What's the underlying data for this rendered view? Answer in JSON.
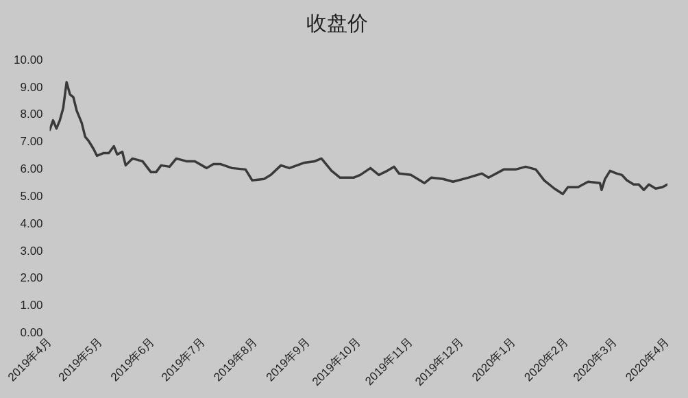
{
  "chart_data": {
    "type": "line",
    "title": "收盘价",
    "x": [
      "2019-04-01",
      "2019-04-03",
      "2019-04-05",
      "2019-04-07",
      "2019-04-09",
      "2019-04-11",
      "2019-04-13",
      "2019-04-15",
      "2019-04-17",
      "2019-04-20",
      "2019-04-22",
      "2019-04-24",
      "2019-04-27",
      "2019-04-29",
      "2019-05-03",
      "2019-05-06",
      "2019-05-09",
      "2019-05-11",
      "2019-05-14",
      "2019-05-16",
      "2019-05-20",
      "2019-05-26",
      "2019-05-31",
      "2019-06-03",
      "2019-06-06",
      "2019-06-11",
      "2019-06-15",
      "2019-06-21",
      "2019-06-26",
      "2019-07-03",
      "2019-07-07",
      "2019-07-11",
      "2019-07-18",
      "2019-07-26",
      "2019-07-30",
      "2019-08-06",
      "2019-08-10",
      "2019-08-16",
      "2019-08-21",
      "2019-08-30",
      "2019-09-05",
      "2019-09-09",
      "2019-09-11",
      "2019-09-15",
      "2019-09-20",
      "2019-09-28",
      "2019-10-02",
      "2019-10-08",
      "2019-10-13",
      "2019-10-18",
      "2019-10-22",
      "2019-10-25",
      "2019-11-01",
      "2019-11-09",
      "2019-11-13",
      "2019-11-20",
      "2019-11-26",
      "2019-12-05",
      "2019-12-13",
      "2019-12-17",
      "2019-12-26",
      "2020-01-02",
      "2020-01-08",
      "2020-01-14",
      "2020-01-19",
      "2020-01-25",
      "2020-01-30",
      "2020-02-02",
      "2020-02-08",
      "2020-02-14",
      "2020-02-21",
      "2020-02-22",
      "2020-02-24",
      "2020-02-27",
      "2020-03-02",
      "2020-03-05",
      "2020-03-08",
      "2020-03-12",
      "2020-03-15",
      "2020-03-18",
      "2020-03-21",
      "2020-03-25",
      "2020-03-29",
      "2020-04-01"
    ],
    "series": [
      {
        "color": "#3a3a3a",
        "values": [
          7.45,
          7.8,
          7.5,
          7.8,
          8.25,
          9.2,
          8.75,
          8.65,
          8.15,
          7.7,
          7.2,
          7.05,
          6.75,
          6.5,
          6.6,
          6.6,
          6.85,
          6.55,
          6.65,
          6.15,
          6.4,
          6.3,
          5.9,
          5.9,
          6.15,
          6.1,
          6.4,
          6.3,
          6.3,
          6.05,
          6.2,
          6.2,
          6.05,
          6.0,
          5.6,
          5.65,
          5.8,
          6.15,
          6.05,
          6.25,
          6.3,
          6.4,
          6.25,
          5.95,
          5.7,
          5.7,
          5.8,
          6.05,
          5.8,
          5.95,
          6.1,
          5.85,
          5.8,
          5.5,
          5.7,
          5.65,
          5.55,
          5.7,
          5.85,
          5.7,
          6.0,
          6.0,
          6.1,
          6.0,
          5.6,
          5.3,
          5.1,
          5.35,
          5.35,
          5.55,
          5.5,
          5.25,
          5.65,
          5.95,
          5.85,
          5.8,
          5.6,
          5.45,
          5.45,
          5.25,
          5.45,
          5.3,
          5.35,
          5.45
        ]
      }
    ],
    "xlim": [
      "2019-04-01",
      "2020-04-01"
    ],
    "xticks": [
      {
        "value": "2019-04-01",
        "label": "2019年4月"
      },
      {
        "value": "2019-05-01",
        "label": "2019年5月"
      },
      {
        "value": "2019-06-01",
        "label": "2019年6月"
      },
      {
        "value": "2019-07-01",
        "label": "2019年7月"
      },
      {
        "value": "2019-08-01",
        "label": "2019年8月"
      },
      {
        "value": "2019-09-01",
        "label": "2019年9月"
      },
      {
        "value": "2019-10-01",
        "label": "2019年10月"
      },
      {
        "value": "2019-11-01",
        "label": "2019年11月"
      },
      {
        "value": "2019-12-01",
        "label": "2019年12月"
      },
      {
        "value": "2020-01-01",
        "label": "2020年1月"
      },
      {
        "value": "2020-02-01",
        "label": "2020年2月"
      },
      {
        "value": "2020-03-01",
        "label": "2020年3月"
      },
      {
        "value": "2020-04-01",
        "label": "2020年4月"
      }
    ],
    "ylim": [
      0,
      10
    ],
    "yticks": [
      {
        "value": 0,
        "label": "0.00"
      },
      {
        "value": 1,
        "label": "1.00"
      },
      {
        "value": 2,
        "label": "2.00"
      },
      {
        "value": 3,
        "label": "3.00"
      },
      {
        "value": 4,
        "label": "4.00"
      },
      {
        "value": 5,
        "label": "5.00"
      },
      {
        "value": 6,
        "label": "6.00"
      },
      {
        "value": 7,
        "label": "7.00"
      },
      {
        "value": 8,
        "label": "8.00"
      },
      {
        "value": 9,
        "label": "9.00"
      },
      {
        "value": 10,
        "label": "10.00"
      }
    ],
    "grid": false,
    "legend": false,
    "marker": "none",
    "line_style": "solid"
  }
}
